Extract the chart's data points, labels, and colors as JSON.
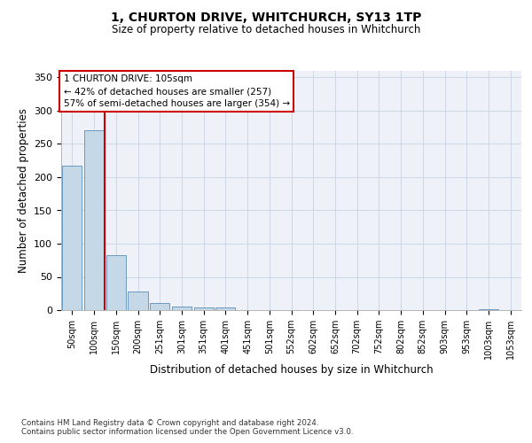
{
  "title1": "1, CHURTON DRIVE, WHITCHURCH, SY13 1TP",
  "title2": "Size of property relative to detached houses in Whitchurch",
  "xlabel": "Distribution of detached houses by size in Whitchurch",
  "ylabel": "Number of detached properties",
  "categories": [
    "50sqm",
    "100sqm",
    "150sqm",
    "200sqm",
    "251sqm",
    "301sqm",
    "351sqm",
    "401sqm",
    "451sqm",
    "501sqm",
    "552sqm",
    "602sqm",
    "652sqm",
    "702sqm",
    "752sqm",
    "802sqm",
    "852sqm",
    "903sqm",
    "953sqm",
    "1003sqm",
    "1053sqm"
  ],
  "values": [
    217,
    270,
    83,
    28,
    11,
    5,
    4,
    4,
    0,
    0,
    0,
    0,
    0,
    0,
    0,
    0,
    0,
    0,
    0,
    2,
    0
  ],
  "bar_color": "#c5d8e8",
  "bar_edge_color": "#5b8db8",
  "grid_color": "#d0d8e8",
  "background_color": "#eef2f8",
  "vline_color": "#cc0000",
  "annotation_lines": [
    "1 CHURTON DRIVE: 105sqm",
    "← 42% of detached houses are smaller (257)",
    "57% of semi-detached houses are larger (354) →"
  ],
  "annotation_box_color": "#cc0000",
  "ylim": [
    0,
    360
  ],
  "yticks": [
    0,
    50,
    100,
    150,
    200,
    250,
    300,
    350
  ],
  "footer1": "Contains HM Land Registry data © Crown copyright and database right 2024.",
  "footer2": "Contains public sector information licensed under the Open Government Licence v3.0."
}
